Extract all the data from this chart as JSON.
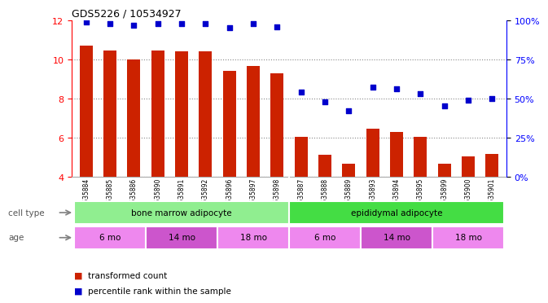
{
  "title": "GDS5226 / 10534927",
  "samples": [
    "GSM635884",
    "GSM635885",
    "GSM635886",
    "GSM635890",
    "GSM635891",
    "GSM635892",
    "GSM635896",
    "GSM635897",
    "GSM635898",
    "GSM635887",
    "GSM635888",
    "GSM635889",
    "GSM635893",
    "GSM635894",
    "GSM635895",
    "GSM635899",
    "GSM635900",
    "GSM635901"
  ],
  "transformed_count": [
    10.7,
    10.45,
    10.0,
    10.45,
    10.4,
    10.4,
    9.4,
    9.65,
    9.3,
    6.05,
    5.1,
    4.65,
    6.45,
    6.3,
    6.05,
    4.65,
    5.05,
    5.15
  ],
  "percentile_rank": [
    99,
    98,
    97,
    98,
    98,
    98,
    95,
    98,
    96,
    54,
    48,
    42,
    57,
    56,
    53,
    45,
    49,
    50
  ],
  "bar_color": "#cc2200",
  "dot_color": "#0000cc",
  "ylim_left": [
    4,
    12
  ],
  "ylim_right": [
    0,
    100
  ],
  "yticks_left": [
    4,
    6,
    8,
    10,
    12
  ],
  "yticks_right": [
    0,
    25,
    50,
    75,
    100
  ],
  "ytick_labels_right": [
    "0%",
    "25%",
    "50%",
    "75%",
    "100%"
  ],
  "cell_types": [
    {
      "label": "bone marrow adipocyte",
      "start": 0,
      "end": 9,
      "color": "#90ee90"
    },
    {
      "label": "epididymal adipocyte",
      "start": 9,
      "end": 18,
      "color": "#44dd44"
    }
  ],
  "age_groups": [
    {
      "label": "6 mo",
      "start": 0,
      "end": 3,
      "color": "#ee88ee"
    },
    {
      "label": "14 mo",
      "start": 3,
      "end": 6,
      "color": "#cc55cc"
    },
    {
      "label": "18 mo",
      "start": 6,
      "end": 9,
      "color": "#ee88ee"
    },
    {
      "label": "6 mo",
      "start": 9,
      "end": 12,
      "color": "#ee88ee"
    },
    {
      "label": "14 mo",
      "start": 12,
      "end": 15,
      "color": "#cc55cc"
    },
    {
      "label": "18 mo",
      "start": 15,
      "end": 18,
      "color": "#ee88ee"
    }
  ],
  "legend_transformed": "transformed count",
  "legend_percentile": "percentile rank within the sample",
  "cell_type_label": "cell type",
  "age_label": "age",
  "background_color": "#ffffff",
  "plot_bg_color": "#ffffff",
  "grid_color": "#888888",
  "sample_bg_color": "#d0d0d0",
  "bar_width": 0.55
}
